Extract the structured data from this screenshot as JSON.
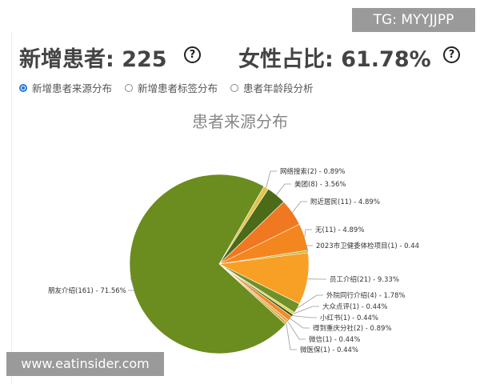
{
  "header": {
    "new_patients": "新增患者: 225",
    "female_ratio": "女性占比: 61.78%",
    "help": "?"
  },
  "radios": [
    {
      "label": "新增患者来源分布",
      "selected": true
    },
    {
      "label": "新增患者标签分布",
      "selected": false
    },
    {
      "label": "患者年龄段分析",
      "selected": false
    }
  ],
  "watermarks": {
    "tg": "TG: MYYJJPP",
    "site": "www.eatinsider.com"
  },
  "chart_data": {
    "type": "pie",
    "title": "患者来源分布",
    "slices": [
      {
        "name": "网络搜索",
        "count": 2,
        "pct": 0.89,
        "label": "网络搜索(2) - 0.89%",
        "color": "#e3c24a"
      },
      {
        "name": "美团",
        "count": 8,
        "pct": 3.56,
        "label": "美团(8) - 3.56%",
        "color": "#4b6b18"
      },
      {
        "name": "附近居民",
        "count": 11,
        "pct": 4.89,
        "label": "附近居民(11) - 4.89%",
        "color": "#f07820"
      },
      {
        "name": "无",
        "count": 11,
        "pct": 4.89,
        "label": "无(11) - 4.89%",
        "color": "#f3861e"
      },
      {
        "name": "2023市卫健委体检项目",
        "count": 1,
        "pct": 0.44,
        "label": "2023市卫健委体检项目(1) - 0.44",
        "color": "#c9b84a"
      },
      {
        "name": "员工介绍",
        "count": 21,
        "pct": 9.33,
        "label": "员工介绍(21) - 9.33%",
        "color": "#f7a025"
      },
      {
        "name": "外院同行介绍",
        "count": 4,
        "pct": 1.78,
        "label": "外院同行介绍(4) - 1.78%",
        "color": "#6e9128"
      },
      {
        "name": "大众点评",
        "count": 1,
        "pct": 0.44,
        "label": "大众点评(1) - 0.44%",
        "color": "#e8cf50"
      },
      {
        "name": "小红书",
        "count": 1,
        "pct": 0.44,
        "label": "小红书(1) - 0.44%",
        "color": "#3f5a14"
      },
      {
        "name": "得到重庆分社",
        "count": 2,
        "pct": 0.89,
        "label": "得到重庆分社(2) - 0.89%",
        "color": "#f08a2a"
      },
      {
        "name": "微信",
        "count": 1,
        "pct": 0.44,
        "label": "微信(1) - 0.44%",
        "color": "#e9a040"
      },
      {
        "name": "微医保",
        "count": 1,
        "pct": 0.44,
        "label": "微医保(1) - 0.44%",
        "color": "#c7b040"
      },
      {
        "name": "朋友介绍",
        "count": 161,
        "pct": 71.56,
        "label": "朋友介绍(161) - 71.56%",
        "color": "#6b8c1e"
      }
    ]
  }
}
